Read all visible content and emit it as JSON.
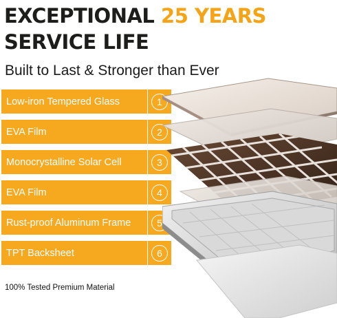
{
  "headline": {
    "line1_dark": "EXCEPTIONAL",
    "line1_gold": "25 YEARS",
    "line2": "SERVICE LIFE"
  },
  "subtitle": "Built to Last & Stronger than Ever",
  "layers": [
    {
      "label": "Low-iron Tempered Glass",
      "number": "1"
    },
    {
      "label": "EVA Film",
      "number": "2"
    },
    {
      "label": "Monocrystalline Solar Cell",
      "number": "3"
    },
    {
      "label": "EVA Film",
      "number": "4"
    },
    {
      "label": "Rust-proof Aluminum Frame",
      "number": "5"
    },
    {
      "label": "TPT Backsheet",
      "number": "6"
    }
  ],
  "footnote": "100% Tested Premium Material",
  "colors": {
    "accent": "#f6a81f",
    "headline_gold": "#f4a416",
    "headline_dark": "#1d1d1b"
  }
}
